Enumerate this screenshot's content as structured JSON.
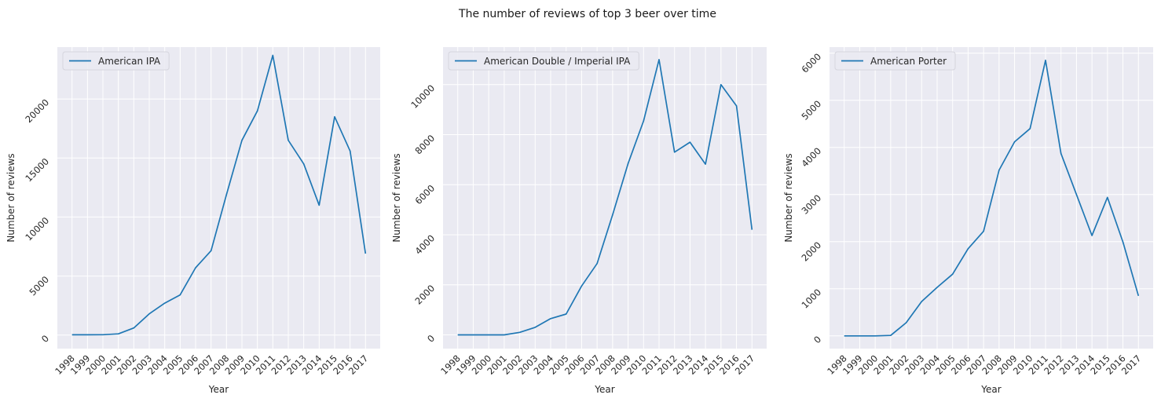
{
  "title": "The number of reviews of top 3 beer over time",
  "chart_data": [
    {
      "type": "line",
      "xlabel": "Year",
      "ylabel": "Number of reviews",
      "x": [
        "1998",
        "1999",
        "2000",
        "2001",
        "2002",
        "2003",
        "2004",
        "2005",
        "2006",
        "2007",
        "2008",
        "2009",
        "2010",
        "2011",
        "2012",
        "2013",
        "2014",
        "2015",
        "2016",
        "2017"
      ],
      "yticks": [
        0,
        5000,
        10000,
        15000,
        20000
      ],
      "ylim": [
        -1150,
        24400
      ],
      "grid": true,
      "legend": "upper left",
      "series": [
        {
          "name": "American IPA",
          "color": "#1f77b4",
          "values": [
            20,
            20,
            30,
            100,
            600,
            1800,
            2700,
            3400,
            5700,
            7150,
            11900,
            16500,
            19000,
            23700,
            16500,
            14500,
            11000,
            18500,
            15600,
            6900
          ]
        }
      ]
    },
    {
      "type": "line",
      "xlabel": "Year",
      "ylabel": "Number of reviews",
      "x": [
        "1998",
        "1999",
        "2000",
        "2001",
        "2002",
        "2003",
        "2004",
        "2005",
        "2006",
        "2007",
        "2008",
        "2009",
        "2010",
        "2011",
        "2012",
        "2013",
        "2014",
        "2015",
        "2016",
        "2017"
      ],
      "yticks": [
        0,
        2000,
        4000,
        6000,
        8000,
        10000
      ],
      "ylim": [
        -550,
        11500
      ],
      "grid": true,
      "legend": "upper left",
      "series": [
        {
          "name": "American Double / Imperial IPA",
          "color": "#1f77b4",
          "values": [
            0,
            0,
            0,
            0,
            100,
            300,
            650,
            830,
            1950,
            2850,
            4800,
            6850,
            8550,
            11000,
            7300,
            7700,
            6820,
            10000,
            9150,
            4200
          ]
        }
      ]
    },
    {
      "type": "line",
      "xlabel": "Year",
      "ylabel": "Number of reviews",
      "x": [
        "1998",
        "1999",
        "2000",
        "2001",
        "2002",
        "2003",
        "2004",
        "2005",
        "2006",
        "2007",
        "2008",
        "2009",
        "2010",
        "2011",
        "2012",
        "2013",
        "2014",
        "2015",
        "2016",
        "2017"
      ],
      "yticks": [
        0,
        1000,
        2000,
        3000,
        4000,
        5000,
        6000
      ],
      "ylim": [
        -270,
        6130
      ],
      "grid": true,
      "legend": "upper left",
      "series": [
        {
          "name": "American Porter",
          "color": "#1f77b4",
          "values": [
            0,
            0,
            0,
            10,
            280,
            730,
            1030,
            1310,
            1850,
            2220,
            3520,
            4120,
            4400,
            5850,
            3870,
            3000,
            2130,
            2940,
            1990,
            850
          ]
        }
      ]
    }
  ]
}
